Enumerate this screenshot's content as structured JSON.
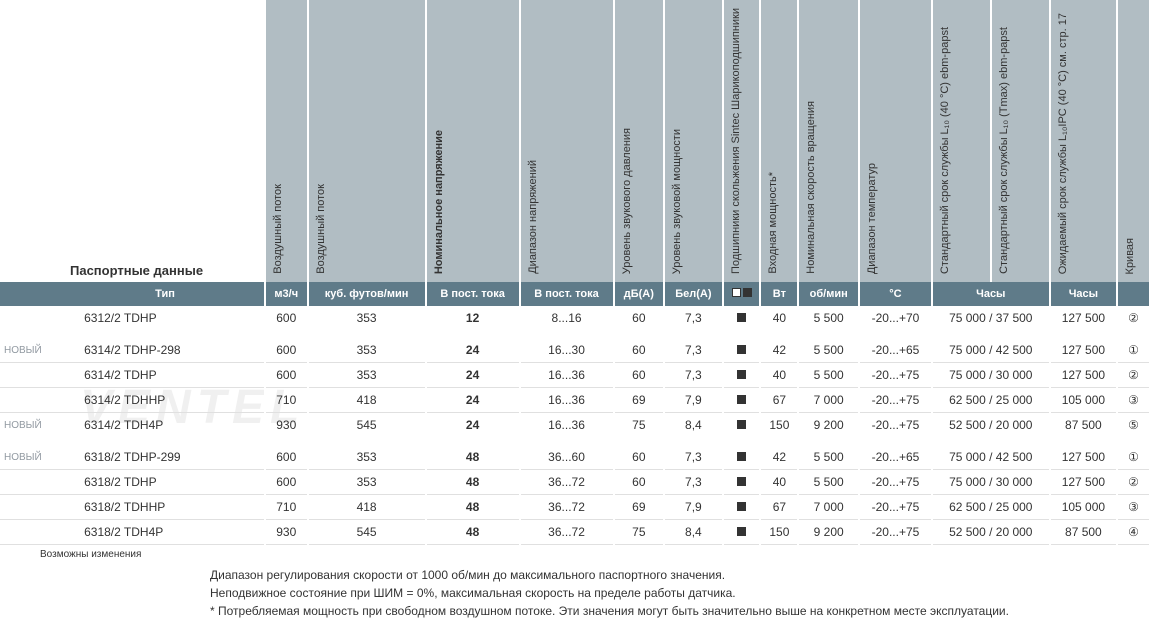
{
  "title": "Паспортные данные",
  "headers": {
    "airflow1": "Воздушный поток",
    "airflow2": "Воздушный поток",
    "nominal_voltage": "Номинальное напряжение",
    "voltage_range": "Диапазон напряжений",
    "sound_pressure": "Уровень звукового давления",
    "sound_power": "Уровень звуковой мощности",
    "bearing": "Подшипники скольжения Sintec Шарикоподшипники",
    "input_power": "Входная мощность*",
    "nominal_speed": "Номинальная скорость вращения",
    "temp_range": "Диапазон температур",
    "life40c": "Стандартный срок службы L₁₀ (40 °C) ebm-papst",
    "lifetmax": "Стандартный срок службы L₁₀ (Tmax) ebm-papst",
    "life_expected": "Ожидаемый срок службы L₁₀IPC (40 °C) см. стр. 17",
    "curve": "Кривая"
  },
  "units": {
    "type": "Тип",
    "m3h": "м3/ч",
    "cfm": "куб. футов/мин",
    "vdc1": "В пост. тока",
    "vdc2": "В пост. тока",
    "dba": "дБ(A)",
    "bela": "Бел(A)",
    "watt": "Вт",
    "rpm": "об/мин",
    "deg": "°C",
    "hours": "Часы",
    "hours2": "Часы"
  },
  "new_label": "НОВЫЙ",
  "rows": [
    {
      "new": false,
      "model": "6312/2 TDHP",
      "airflow_m3h": "600",
      "airflow_cfm": "353",
      "voltage": "12",
      "vrange": "8...16",
      "dba": "60",
      "bela": "7,3",
      "watt": "40",
      "rpm": "5 500",
      "temp": "-20...+70",
      "life_combo": "75 000 / 37 500",
      "life_exp": "127 500",
      "curve": "②",
      "gap": true
    },
    {
      "new": true,
      "model": "6314/2 TDHP-298",
      "airflow_m3h": "600",
      "airflow_cfm": "353",
      "voltage": "24",
      "vrange": "16...30",
      "dba": "60",
      "bela": "7,3",
      "watt": "42",
      "rpm": "5 500",
      "temp": "-20...+65",
      "life_combo": "75 000 / 42 500",
      "life_exp": "127 500",
      "curve": "①",
      "gap": false
    },
    {
      "new": false,
      "model": "6314/2 TDHP",
      "airflow_m3h": "600",
      "airflow_cfm": "353",
      "voltage": "24",
      "vrange": "16...36",
      "dba": "60",
      "bela": "7,3",
      "watt": "40",
      "rpm": "5 500",
      "temp": "-20...+75",
      "life_combo": "75 000 / 30 000",
      "life_exp": "127 500",
      "curve": "②",
      "gap": false
    },
    {
      "new": false,
      "model": "6314/2 TDHHP",
      "airflow_m3h": "710",
      "airflow_cfm": "418",
      "voltage": "24",
      "vrange": "16...36",
      "dba": "69",
      "bela": "7,9",
      "watt": "67",
      "rpm": "7 000",
      "temp": "-20...+75",
      "life_combo": "62 500 / 25 000",
      "life_exp": "105 000",
      "curve": "③",
      "gap": false
    },
    {
      "new": true,
      "model": "6314/2 TDH4P",
      "airflow_m3h": "930",
      "airflow_cfm": "545",
      "voltage": "24",
      "vrange": "16...36",
      "dba": "75",
      "bela": "8,4",
      "watt": "150",
      "rpm": "9 200",
      "temp": "-20...+75",
      "life_combo": "52 500 / 20 000",
      "life_exp": "87 500",
      "curve": "⑤",
      "gap": true
    },
    {
      "new": true,
      "model": "6318/2 TDHP-299",
      "airflow_m3h": "600",
      "airflow_cfm": "353",
      "voltage": "48",
      "vrange": "36...60",
      "dba": "60",
      "bela": "7,3",
      "watt": "42",
      "rpm": "5 500",
      "temp": "-20...+65",
      "life_combo": "75 000 / 42 500",
      "life_exp": "127 500",
      "curve": "①",
      "gap": false
    },
    {
      "new": false,
      "model": "6318/2 TDHP",
      "airflow_m3h": "600",
      "airflow_cfm": "353",
      "voltage": "48",
      "vrange": "36...72",
      "dba": "60",
      "bela": "7,3",
      "watt": "40",
      "rpm": "5 500",
      "temp": "-20...+75",
      "life_combo": "75 000 / 30 000",
      "life_exp": "127 500",
      "curve": "②",
      "gap": false
    },
    {
      "new": false,
      "model": "6318/2 TDHHP",
      "airflow_m3h": "710",
      "airflow_cfm": "418",
      "voltage": "48",
      "vrange": "36...72",
      "dba": "69",
      "bela": "7,9",
      "watt": "67",
      "rpm": "7 000",
      "temp": "-20...+75",
      "life_combo": "62 500 / 25 000",
      "life_exp": "105 000",
      "curve": "③",
      "gap": false
    },
    {
      "new": false,
      "model": "6318/2 TDH4P",
      "airflow_m3h": "930",
      "airflow_cfm": "545",
      "voltage": "48",
      "vrange": "36...72",
      "dba": "75",
      "bela": "8,4",
      "watt": "150",
      "rpm": "9 200",
      "temp": "-20...+75",
      "life_combo": "52 500 / 20 000",
      "life_exp": "87 500",
      "curve": "④",
      "gap": false
    }
  ],
  "changes_note": "Возможны изменения",
  "footnotes": {
    "l1": "Диапазон регулирования скорости от 1000 об/мин до максимального паспортного значения.",
    "l2": "Неподвижное состояние при ШИМ = 0%, максимальная скорость на пределе работы датчика.",
    "l3": "* Потребляемая мощность при свободном воздушном потоке. Эти значения могут быть значительно выше на конкретном месте эксплуатации."
  },
  "colors": {
    "header_top_bg": "#b1bdc3",
    "header_unit_bg": "#5f7b89",
    "header_unit_fg": "#ffffff",
    "row_border": "#e0e0e0",
    "new_badge": "#9199a1"
  }
}
